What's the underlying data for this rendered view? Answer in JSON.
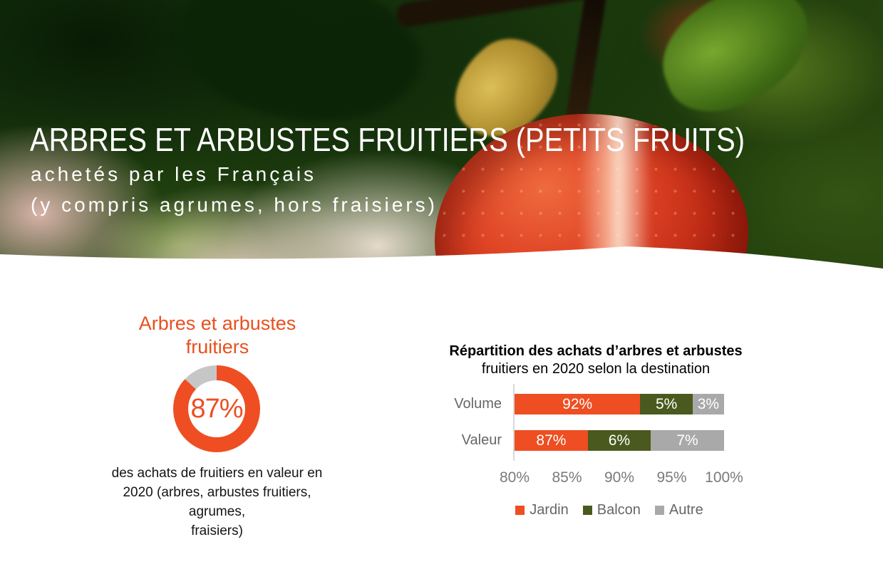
{
  "header": {
    "title": "ARBRES ET ARBUSTES FRUITIERS (PETITS FRUITS)",
    "subtitle_lines": [
      "achetés par les Français",
      "(y compris agrumes, hors fraisiers)"
    ]
  },
  "left_panel": {
    "title_lines": [
      "Arbres et arbustes",
      "fruitiers"
    ],
    "caption_lines": [
      "des achats de fruitiers en valeur en",
      "2020 (arbres, arbustes fruitiers, agrumes,",
      "fraisiers)"
    ],
    "accent_color": "#E8501E"
  },
  "chart_data": [
    {
      "type": "donut",
      "title": "Arbres et arbustes fruitiers",
      "value": 87,
      "label": "87%",
      "value_color": "#EE4E22",
      "remainder_color": "#C6C6C6"
    },
    {
      "type": "bar",
      "orientation": "horizontal-stacked",
      "title_line1_bold": "Répartition des achats d’arbres et arbustes",
      "title_line2": "fruitiers en 2020 selon la destination",
      "categories": [
        "Volume",
        "Valeur"
      ],
      "series": [
        {
          "name": "Jardin",
          "color": "#EE4E22",
          "values": [
            92,
            87
          ]
        },
        {
          "name": "Balcon",
          "color": "#4A5A1E",
          "values": [
            5,
            6
          ]
        },
        {
          "name": "Autre",
          "color": "#A9A9A9",
          "values": [
            3,
            7
          ]
        }
      ],
      "xlim": [
        80,
        100
      ],
      "x_ticks": [
        "80%",
        "85%",
        "90%",
        "95%",
        "100%"
      ],
      "legend_position": "bottom",
      "grid": false,
      "axis_color": "#D8D8D8",
      "label_color": "#666666"
    }
  ]
}
